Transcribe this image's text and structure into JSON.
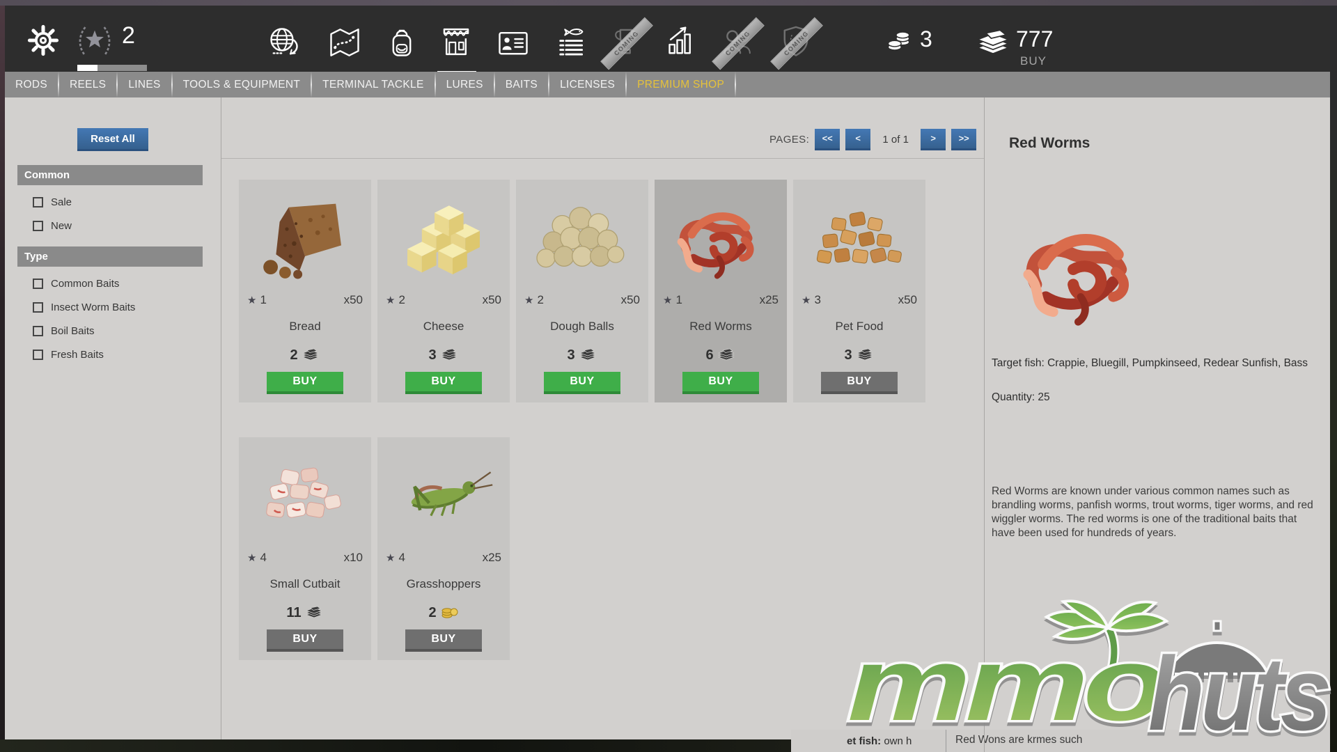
{
  "top_bar": {
    "level": "2",
    "level_progress_percent": 29,
    "coming_label": "COMING",
    "coins_count": "3",
    "cash_amount": "777",
    "cash_buy_label": "BUY"
  },
  "tabs": [
    {
      "label": "RODS",
      "premium": false
    },
    {
      "label": "REELS",
      "premium": false
    },
    {
      "label": "LINES",
      "premium": false
    },
    {
      "label": "TOOLS & EQUIPMENT",
      "premium": false
    },
    {
      "label": "TERMINAL TACKLE",
      "premium": false
    },
    {
      "label": "LURES",
      "premium": false
    },
    {
      "label": "BAITS",
      "premium": false
    },
    {
      "label": "LICENSES",
      "premium": false
    },
    {
      "label": "PREMIUM SHOP",
      "premium": true
    }
  ],
  "sidebar": {
    "reset_label": "Reset All",
    "sections": [
      {
        "title": "Common",
        "items": [
          "Sale",
          "New"
        ]
      },
      {
        "title": "Type",
        "items": [
          "Common Baits",
          "Insect Worm Baits",
          "Boil Baits",
          "Fresh Baits"
        ]
      }
    ]
  },
  "pager": {
    "label": "PAGES:",
    "first": "<<",
    "prev": "<",
    "status": "1 of 1",
    "next": ">",
    "last": ">>"
  },
  "labels": {
    "buy": "BUY"
  },
  "icons": {
    "star_glyph": "★"
  },
  "products": [
    {
      "name": "Bread",
      "stars": "1",
      "qty": "x50",
      "price": "2",
      "currency": "cash",
      "buy_state": "enabled",
      "image": "bread",
      "selected": false
    },
    {
      "name": "Cheese",
      "stars": "2",
      "qty": "x50",
      "price": "3",
      "currency": "cash",
      "buy_state": "enabled",
      "image": "cheese",
      "selected": false
    },
    {
      "name": "Dough Balls",
      "stars": "2",
      "qty": "x50",
      "price": "3",
      "currency": "cash",
      "buy_state": "enabled",
      "image": "dough-balls",
      "selected": false
    },
    {
      "name": "Red Worms",
      "stars": "1",
      "qty": "x25",
      "price": "6",
      "currency": "cash",
      "buy_state": "enabled",
      "image": "red-worms",
      "selected": true
    },
    {
      "name": "Pet Food",
      "stars": "3",
      "qty": "x50",
      "price": "3",
      "currency": "cash",
      "buy_state": "disabled",
      "image": "pet-food",
      "selected": false
    },
    {
      "name": "Small Cutbait",
      "stars": "4",
      "qty": "x10",
      "price": "11",
      "currency": "cash",
      "buy_state": "disabled",
      "image": "small-cutbait",
      "selected": false
    },
    {
      "name": "Grasshoppers",
      "stars": "4",
      "qty": "x25",
      "price": "2",
      "currency": "gold",
      "buy_state": "disabled",
      "image": "grasshoppers",
      "selected": false
    }
  ],
  "detail": {
    "title": "Red Worms",
    "target_fish": "Target fish: Crappie, Bluegill, Pumpkinseed, Redear Sunfish, Bass",
    "quantity": "Quantity: 25",
    "description": "Red Worms are known under various common names such as brandling worms, panfish worms, trout worms, tiger worms, and red wiggler worms. The red worms is one of the traditional baits that have been used for hundreds of years."
  },
  "watermark": {
    "mmo": "mmo",
    "huts": "huts"
  },
  "bottom_glitch": {
    "left_bold": "et fish:",
    "left_rest": " own h",
    "right": "Red Wons are krmes such"
  },
  "colors": {
    "accent_blue": "#3a6da7",
    "buy_green": "#3fae49",
    "disabled_gray": "#6f6f6f",
    "premium_yellow": "#e6c23a",
    "topbar_dark": "#2d2d2d",
    "tab_gray": "#8b8b8b",
    "panel_gray": "#d2d0ce",
    "card_gray": "#c6c5c3",
    "card_selected": "#aeadab"
  }
}
